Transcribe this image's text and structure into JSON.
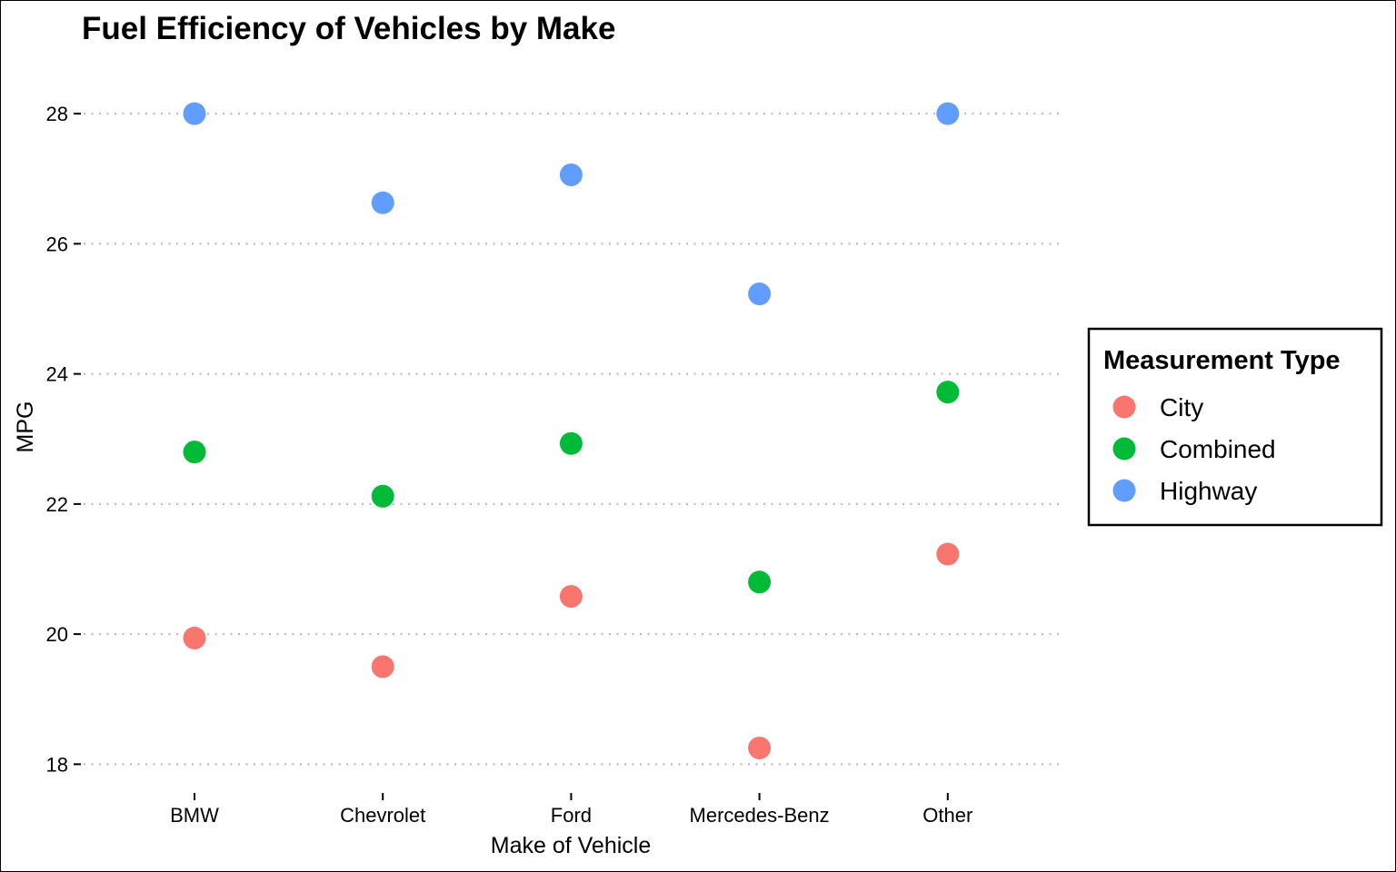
{
  "chart_data": {
    "type": "scatter",
    "title": "Fuel Efficiency of Vehicles by Make",
    "xlabel": "Make of Vehicle",
    "ylabel": "MPG",
    "categories": [
      "BMW",
      "Chevrolet",
      "Ford",
      "Mercedes-Benz",
      "Other"
    ],
    "ylim": [
      17.6,
      28.7
    ],
    "yticks": [
      18,
      20,
      22,
      24,
      26,
      28
    ],
    "grid": "horizontal dotted",
    "legend": {
      "title": "Measurement Type",
      "placement": "right"
    },
    "series": [
      {
        "name": "City",
        "color": "#F8766D",
        "values": [
          19.94,
          19.5,
          20.58,
          18.25,
          21.23
        ]
      },
      {
        "name": "Combined",
        "color": "#00BA38",
        "values": [
          22.8,
          22.12,
          22.93,
          20.8,
          23.72
        ]
      },
      {
        "name": "Highway",
        "color": "#619CFF",
        "values": [
          28.0,
          26.63,
          27.06,
          25.23,
          28.0
        ]
      }
    ]
  }
}
